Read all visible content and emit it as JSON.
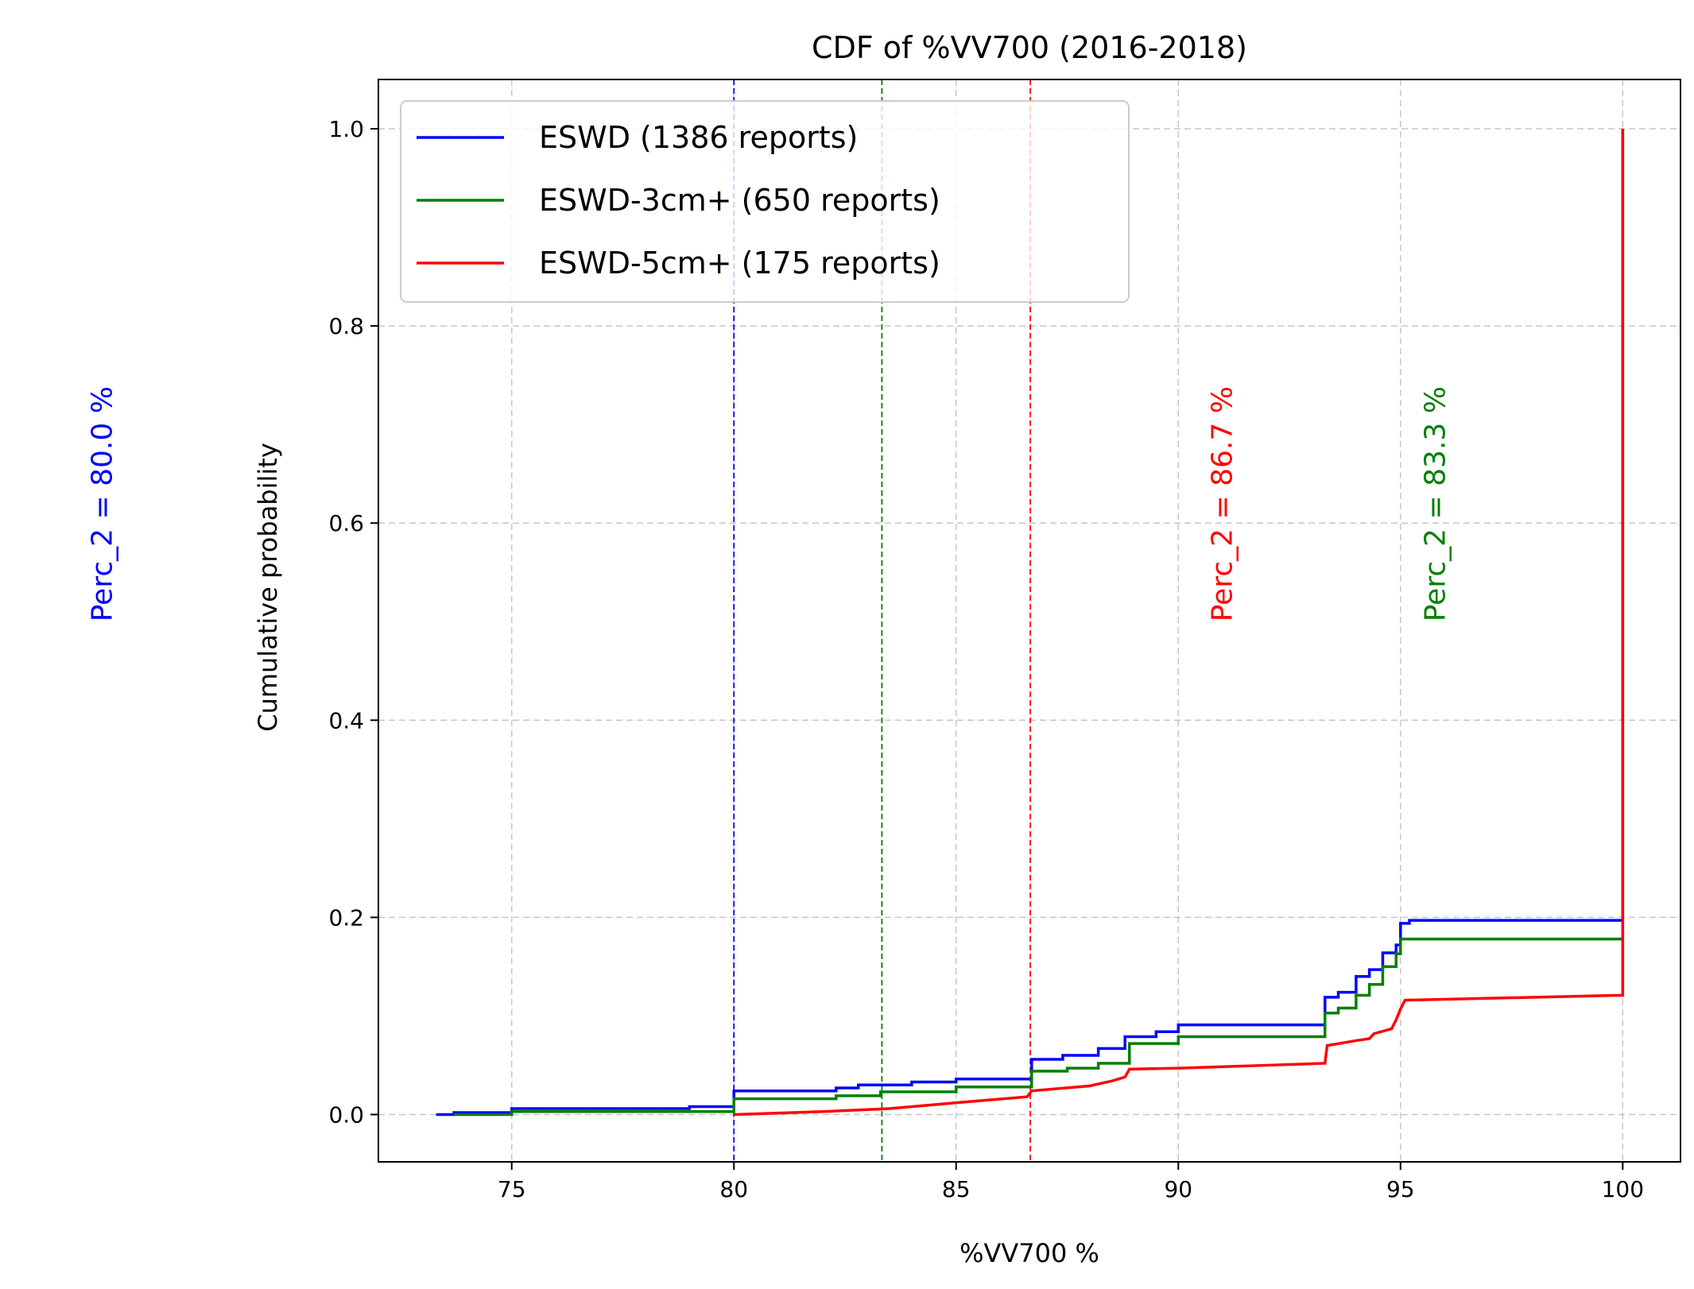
{
  "chart_data": {
    "type": "line",
    "title": "CDF of %VV700 (2016-2018)",
    "xlabel": "%VV700 %",
    "ylabel": "Cumulative probability",
    "xlim": [
      72,
      101.3
    ],
    "ylim": [
      -0.048,
      1.05
    ],
    "xticks": [
      75,
      80,
      85,
      90,
      95,
      100
    ],
    "yticks": [
      0.0,
      0.2,
      0.4,
      0.6,
      0.8,
      1.0
    ],
    "xtick_labels": [
      "75",
      "80",
      "85",
      "90",
      "95",
      "100"
    ],
    "ytick_labels": [
      "0.0",
      "0.2",
      "0.4",
      "0.6",
      "0.8",
      "1.0"
    ],
    "grid": true,
    "legend_position": "top-left",
    "series": [
      {
        "name": "ESWD (1386 reports)",
        "color": "#0000ff",
        "step": true,
        "x": [
          73.3,
          73.7,
          75.0,
          79.0,
          80.0,
          82.3,
          82.8,
          84.0,
          85.0,
          86.7,
          87.4,
          88.2,
          88.8,
          89.5,
          90.0,
          93.3,
          93.6,
          94.0,
          94.3,
          94.6,
          94.9,
          95.0,
          95.2,
          100.0,
          100.0
        ],
        "y": [
          0.0,
          0.002,
          0.006,
          0.008,
          0.024,
          0.027,
          0.03,
          0.033,
          0.036,
          0.056,
          0.06,
          0.067,
          0.079,
          0.084,
          0.091,
          0.119,
          0.124,
          0.14,
          0.147,
          0.164,
          0.172,
          0.194,
          0.197,
          0.197,
          1.0
        ]
      },
      {
        "name": "ESWD-3cm+ (650 reports)",
        "color": "#008000",
        "step": true,
        "x": [
          73.7,
          75.0,
          80.0,
          82.3,
          83.3,
          85.0,
          86.7,
          87.5,
          88.2,
          88.9,
          90.0,
          93.3,
          93.6,
          94.0,
          94.3,
          94.6,
          94.9,
          95.0,
          100.0
        ],
        "y": [
          0.0,
          0.003,
          0.016,
          0.019,
          0.023,
          0.028,
          0.044,
          0.047,
          0.052,
          0.072,
          0.079,
          0.103,
          0.108,
          0.121,
          0.132,
          0.15,
          0.163,
          0.178,
          0.178
        ]
      },
      {
        "name": "ESWD-5cm+ (175 reports)",
        "color": "#ff0000",
        "step": false,
        "x": [
          80.0,
          82.0,
          83.5,
          85.0,
          86.6,
          86.7,
          88.0,
          88.5,
          88.8,
          88.9,
          90.0,
          92.0,
          93.3,
          93.35,
          94.0,
          94.3,
          94.4,
          94.8,
          94.9,
          95.0,
          95.1,
          100.0,
          100.0
        ],
        "y": [
          0.0,
          0.003,
          0.006,
          0.012,
          0.018,
          0.024,
          0.029,
          0.034,
          0.038,
          0.046,
          0.047,
          0.05,
          0.052,
          0.07,
          0.075,
          0.077,
          0.082,
          0.087,
          0.096,
          0.107,
          0.116,
          0.121,
          1.0
        ]
      }
    ],
    "vlines": [
      {
        "x": 80.0,
        "color": "#0000ff"
      },
      {
        "x": 83.33,
        "color": "#008000"
      },
      {
        "x": 86.67,
        "color": "#ff0000"
      }
    ],
    "annotations": [
      {
        "text": "Perc_2 = 80.0 %",
        "color": "#0000ff",
        "x": 66.0,
        "y": 0.5
      },
      {
        "text": "Perc_2 = 86.7 %",
        "color": "#ff0000",
        "x": 91.2,
        "y": 0.5
      },
      {
        "text": "Perc_2 = 83.3 %",
        "color": "#008000",
        "x": 96.0,
        "y": 0.5
      }
    ]
  }
}
